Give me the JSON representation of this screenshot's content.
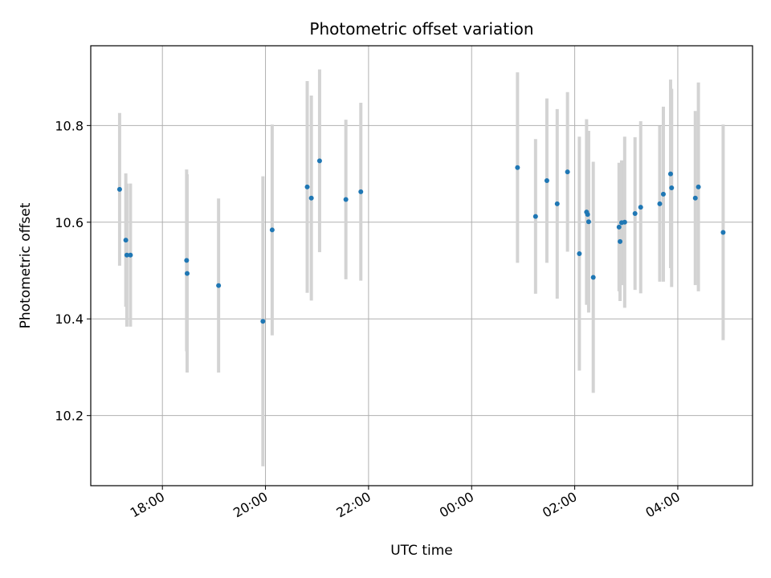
{
  "chart_data": {
    "type": "scatter",
    "title": "Photometric offset variation",
    "xlabel": "UTC time",
    "ylabel": "Photometric offset",
    "x_unit": "hours since 18:00 UTC",
    "xlim": [
      -1.39,
      11.45
    ],
    "ylim": [
      10.055,
      10.965
    ],
    "grid": true,
    "x_ticks": [
      {
        "value": 0,
        "label": "18:00"
      },
      {
        "value": 2,
        "label": "20:00"
      },
      {
        "value": 4,
        "label": "22:00"
      },
      {
        "value": 6,
        "label": "00:00"
      },
      {
        "value": 8,
        "label": "02:00"
      },
      {
        "value": 10,
        "label": "04:00"
      }
    ],
    "y_ticks": [
      {
        "value": 10.2,
        "label": "10.2"
      },
      {
        "value": 10.4,
        "label": "10.4"
      },
      {
        "value": 10.6,
        "label": "10.6"
      },
      {
        "value": 10.8,
        "label": "10.8"
      }
    ],
    "marker_color": "#1f77b4",
    "errorbar_color": "#d3d3d3",
    "series": [
      {
        "name": "Photometric offset",
        "points": [
          {
            "x": -0.83,
            "y": 10.668,
            "lo": 10.51,
            "hi": 10.826
          },
          {
            "x": -0.71,
            "y": 10.563,
            "lo": 10.425,
            "hi": 10.701
          },
          {
            "x": -0.69,
            "y": 10.532,
            "lo": 10.384,
            "hi": 10.68
          },
          {
            "x": -0.62,
            "y": 10.532,
            "lo": 10.384,
            "hi": 10.68
          },
          {
            "x": 0.47,
            "y": 10.521,
            "lo": 10.333,
            "hi": 10.709
          },
          {
            "x": 0.48,
            "y": 10.494,
            "lo": 10.289,
            "hi": 10.699
          },
          {
            "x": 1.09,
            "y": 10.469,
            "lo": 10.289,
            "hi": 10.649
          },
          {
            "x": 1.95,
            "y": 10.395,
            "lo": 10.095,
            "hi": 10.695
          },
          {
            "x": 2.13,
            "y": 10.584,
            "lo": 10.366,
            "hi": 10.802
          },
          {
            "x": 2.81,
            "y": 10.673,
            "lo": 10.454,
            "hi": 10.892
          },
          {
            "x": 2.89,
            "y": 10.65,
            "lo": 10.438,
            "hi": 10.862
          },
          {
            "x": 3.05,
            "y": 10.727,
            "lo": 10.538,
            "hi": 10.916
          },
          {
            "x": 3.56,
            "y": 10.647,
            "lo": 10.482,
            "hi": 10.812
          },
          {
            "x": 3.85,
            "y": 10.663,
            "lo": 10.479,
            "hi": 10.847
          },
          {
            "x": 6.89,
            "y": 10.713,
            "lo": 10.516,
            "hi": 10.91
          },
          {
            "x": 7.24,
            "y": 10.612,
            "lo": 10.452,
            "hi": 10.772
          },
          {
            "x": 7.46,
            "y": 10.686,
            "lo": 10.516,
            "hi": 10.856
          },
          {
            "x": 7.66,
            "y": 10.638,
            "lo": 10.442,
            "hi": 10.834
          },
          {
            "x": 7.86,
            "y": 10.704,
            "lo": 10.539,
            "hi": 10.869
          },
          {
            "x": 8.09,
            "y": 10.535,
            "lo": 10.293,
            "hi": 10.777
          },
          {
            "x": 8.23,
            "y": 10.621,
            "lo": 10.429,
            "hi": 10.813
          },
          {
            "x": 8.25,
            "y": 10.616,
            "lo": 10.459,
            "hi": 10.773
          },
          {
            "x": 8.27,
            "y": 10.601,
            "lo": 10.413,
            "hi": 10.789
          },
          {
            "x": 8.36,
            "y": 10.486,
            "lo": 10.247,
            "hi": 10.725
          },
          {
            "x": 8.86,
            "y": 10.59,
            "lo": 10.457,
            "hi": 10.723
          },
          {
            "x": 8.88,
            "y": 10.56,
            "lo": 10.437,
            "hi": 10.683
          },
          {
            "x": 8.91,
            "y": 10.599,
            "lo": 10.47,
            "hi": 10.728
          },
          {
            "x": 8.97,
            "y": 10.6,
            "lo": 10.423,
            "hi": 10.777
          },
          {
            "x": 9.17,
            "y": 10.618,
            "lo": 10.46,
            "hi": 10.776
          },
          {
            "x": 9.28,
            "y": 10.631,
            "lo": 10.453,
            "hi": 10.809
          },
          {
            "x": 9.65,
            "y": 10.638,
            "lo": 10.477,
            "hi": 10.799
          },
          {
            "x": 9.72,
            "y": 10.658,
            "lo": 10.477,
            "hi": 10.839
          },
          {
            "x": 9.86,
            "y": 10.7,
            "lo": 10.505,
            "hi": 10.895
          },
          {
            "x": 9.88,
            "y": 10.671,
            "lo": 10.466,
            "hi": 10.876
          },
          {
            "x": 10.34,
            "y": 10.65,
            "lo": 10.47,
            "hi": 10.83
          },
          {
            "x": 10.4,
            "y": 10.673,
            "lo": 10.457,
            "hi": 10.889
          },
          {
            "x": 10.88,
            "y": 10.579,
            "lo": 10.356,
            "hi": 10.802
          }
        ]
      }
    ]
  }
}
